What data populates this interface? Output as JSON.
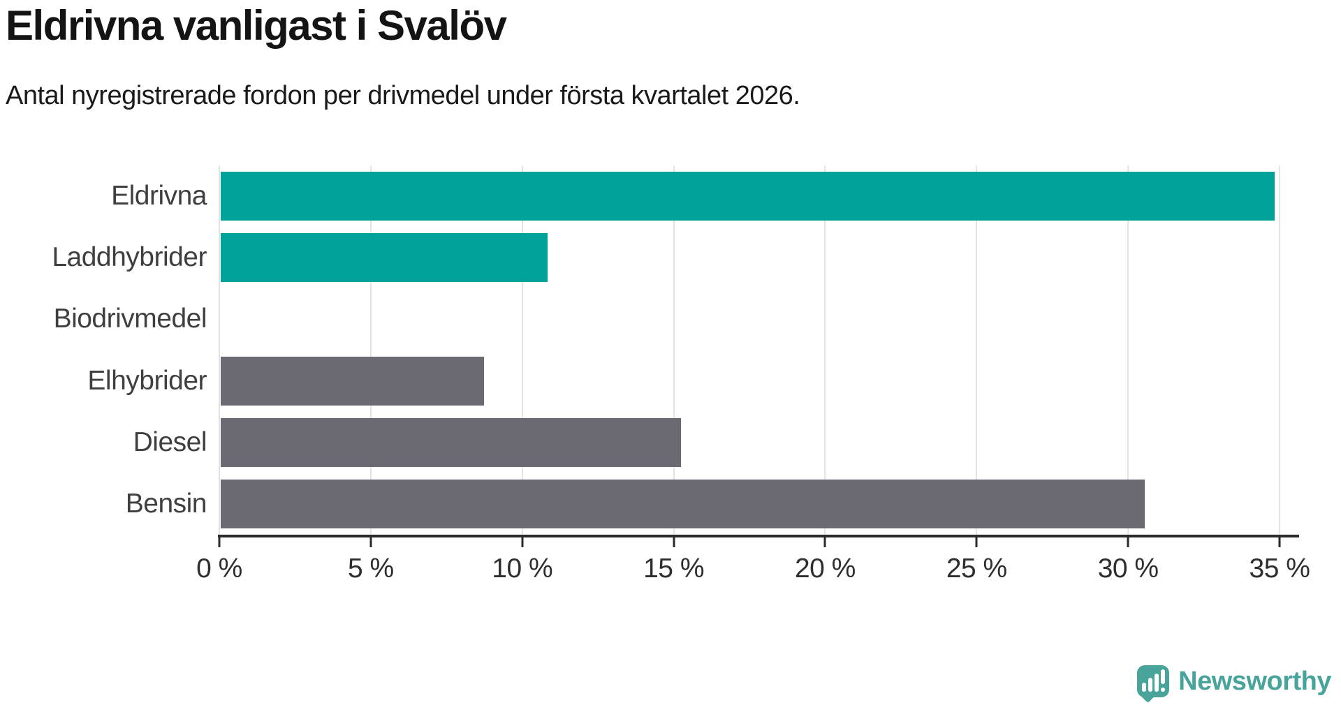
{
  "header": {
    "title": "Eldrivna vanligast i Svalöv",
    "subtitle": "Antal nyregistrerade fordon per drivmedel under första kvartalet 2026."
  },
  "chart_data": {
    "type": "bar",
    "orientation": "horizontal",
    "title": "Eldrivna vanligast i Svalöv",
    "subtitle": "Antal nyregistrerade fordon per drivmedel under första kvartalet 2026.",
    "categories": [
      "Eldrivna",
      "Laddhybrider",
      "Biodrivmedel",
      "Elhybrider",
      "Diesel",
      "Bensin"
    ],
    "values": [
      34.8,
      10.8,
      0,
      8.7,
      15.2,
      30.5
    ],
    "unit": "%",
    "xlim": [
      0,
      35
    ],
    "x_ticks": [
      0,
      5,
      10,
      15,
      20,
      25,
      30,
      35
    ],
    "x_tick_labels": [
      "0 %",
      "5 %",
      "10 %",
      "15 %",
      "20 %",
      "25 %",
      "30 %",
      "35 %"
    ],
    "bar_colors": [
      "#00a29a",
      "#00a29a",
      "#6b6a72",
      "#6b6a72",
      "#6b6a72",
      "#6b6a72"
    ],
    "highlight_color": "#00a29a",
    "default_color": "#6b6a72",
    "gridline_color": "#e4e4e4",
    "axis_color": "#2b2b2b",
    "grid": true,
    "legend": "none"
  },
  "branding": {
    "logo_text": "Newsworthy",
    "logo_color": "#48a39b",
    "logo_icon": "newsworthy-speech-bubble-chart-icon"
  }
}
